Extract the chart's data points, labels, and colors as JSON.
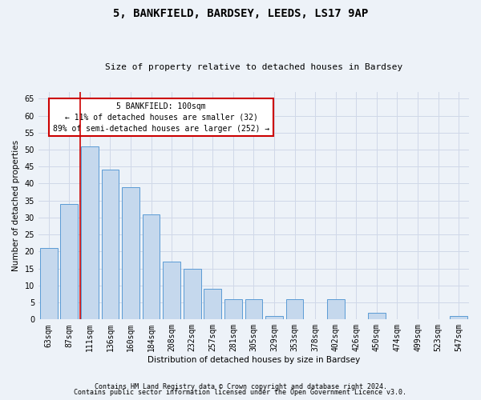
{
  "title1": "5, BANKFIELD, BARDSEY, LEEDS, LS17 9AP",
  "title2": "Size of property relative to detached houses in Bardsey",
  "xlabel": "Distribution of detached houses by size in Bardsey",
  "ylabel": "Number of detached properties",
  "categories": [
    "63sqm",
    "87sqm",
    "111sqm",
    "136sqm",
    "160sqm",
    "184sqm",
    "208sqm",
    "232sqm",
    "257sqm",
    "281sqm",
    "305sqm",
    "329sqm",
    "353sqm",
    "378sqm",
    "402sqm",
    "426sqm",
    "450sqm",
    "474sqm",
    "499sqm",
    "523sqm",
    "547sqm"
  ],
  "values": [
    21,
    34,
    51,
    44,
    39,
    31,
    17,
    15,
    9,
    6,
    6,
    1,
    6,
    0,
    6,
    0,
    2,
    0,
    0,
    0,
    1
  ],
  "bar_color": "#c5d8ed",
  "bar_edge_color": "#5b9bd5",
  "vline_x_index": 2,
  "vline_color": "#cc0000",
  "annotation_text": "5 BANKFIELD: 100sqm\n← 11% of detached houses are smaller (32)\n89% of semi-detached houses are larger (252) →",
  "annotation_box_color": "#ffffff",
  "annotation_box_edge": "#cc0000",
  "ylim": [
    0,
    67
  ],
  "yticks": [
    0,
    5,
    10,
    15,
    20,
    25,
    30,
    35,
    40,
    45,
    50,
    55,
    60,
    65
  ],
  "grid_color": "#d0d8e8",
  "footer1": "Contains HM Land Registry data © Crown copyright and database right 2024.",
  "footer2": "Contains public sector information licensed under the Open Government Licence v3.0.",
  "bg_color": "#edf2f8",
  "plot_bg_color": "#edf2f8",
  "title1_fontsize": 10,
  "title2_fontsize": 8,
  "xlabel_fontsize": 7.5,
  "ylabel_fontsize": 7.5,
  "tick_fontsize": 7,
  "footer_fontsize": 6,
  "annot_fontsize": 7
}
